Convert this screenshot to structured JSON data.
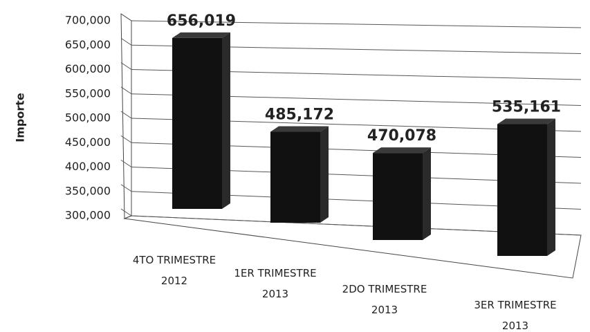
{
  "chart_data": {
    "type": "bar3d",
    "y_label": "Importe",
    "categories": [
      "4TO TRIMESTRE 2012",
      "1ER TRIMESTRE 2013",
      "2DO TRIMESTRE 2013",
      "3ER TRIMESTRE 2013"
    ],
    "values": [
      656019,
      485172,
      470078,
      535161
    ],
    "value_labels": [
      "656,019",
      "485,172",
      "470,078",
      "535,161"
    ],
    "color": "#111111",
    "ylim": [
      300000,
      700000
    ],
    "yticks": [
      {
        "value": 300000,
        "label": "300,000"
      },
      {
        "value": 350000,
        "label": "350,000"
      },
      {
        "value": 400000,
        "label": "400,000"
      },
      {
        "value": 450000,
        "label": "450,000"
      },
      {
        "value": 500000,
        "label": "500,000"
      },
      {
        "value": 550000,
        "label": "550,000"
      },
      {
        "value": 600000,
        "label": "600,000"
      },
      {
        "value": 650000,
        "label": "650,000"
      },
      {
        "value": 700000,
        "label": "700,000"
      }
    ],
    "grid": true
  }
}
